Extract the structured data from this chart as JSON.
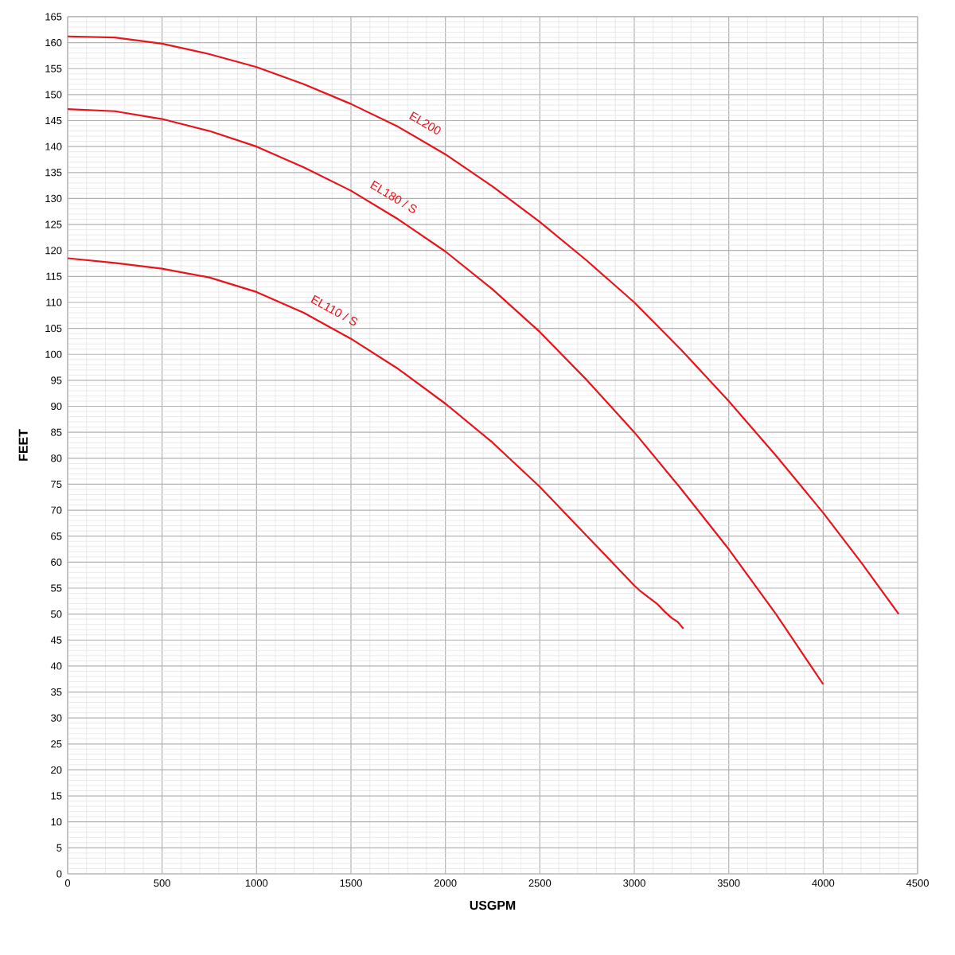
{
  "chart_data": {
    "type": "line",
    "xlabel": "USGPM",
    "ylabel": "FEET",
    "xlim": [
      0,
      4500
    ],
    "ylim": [
      0,
      165
    ],
    "xticks": [
      0,
      500,
      1000,
      1500,
      2000,
      2500,
      3000,
      3500,
      4000,
      4500
    ],
    "yticks": [
      0,
      5,
      10,
      15,
      20,
      25,
      30,
      35,
      40,
      45,
      50,
      55,
      60,
      65,
      70,
      75,
      80,
      85,
      90,
      95,
      100,
      105,
      110,
      115,
      120,
      125,
      130,
      135,
      140,
      145,
      150,
      155,
      160,
      165
    ],
    "grid": true,
    "marker": "none",
    "line_style": "solid",
    "series": [
      {
        "name": "EL200",
        "color": "#e8141c",
        "x": [
          0,
          250,
          500,
          750,
          1000,
          1250,
          1500,
          1750,
          2000,
          2250,
          2500,
          2750,
          3000,
          3250,
          3500,
          3750,
          4000,
          4200,
          4400
        ],
        "values": [
          161.2,
          161,
          159.8,
          157.8,
          155.3,
          152,
          148.2,
          143.8,
          138.5,
          132.3,
          125.5,
          118,
          110,
          100.8,
          91,
          80.5,
          69.5,
          60,
          50
        ]
      },
      {
        "name": "EL180 / S",
        "color": "#e8141c",
        "x": [
          0,
          250,
          500,
          750,
          1000,
          1250,
          1500,
          1750,
          2000,
          2250,
          2500,
          2750,
          3000,
          3250,
          3500,
          3750,
          4000
        ],
        "values": [
          147.2,
          146.8,
          145.3,
          143,
          140,
          136,
          131.5,
          126,
          119.8,
          112.5,
          104.3,
          95,
          85,
          74,
          62.5,
          50,
          36.5
        ]
      },
      {
        "name": "EL110 / S",
        "color": "#e8141c",
        "x": [
          0,
          250,
          500,
          750,
          1000,
          1250,
          1500,
          1750,
          2000,
          2250,
          2500,
          2750,
          3000,
          3030,
          3120,
          3160,
          3200,
          3230,
          3260
        ],
        "values": [
          118.5,
          117.6,
          116.5,
          114.8,
          112,
          108,
          103,
          97.2,
          90.5,
          83,
          74.5,
          65,
          55.5,
          54.5,
          52,
          50.5,
          49.2,
          48.5,
          47.2
        ]
      }
    ]
  }
}
